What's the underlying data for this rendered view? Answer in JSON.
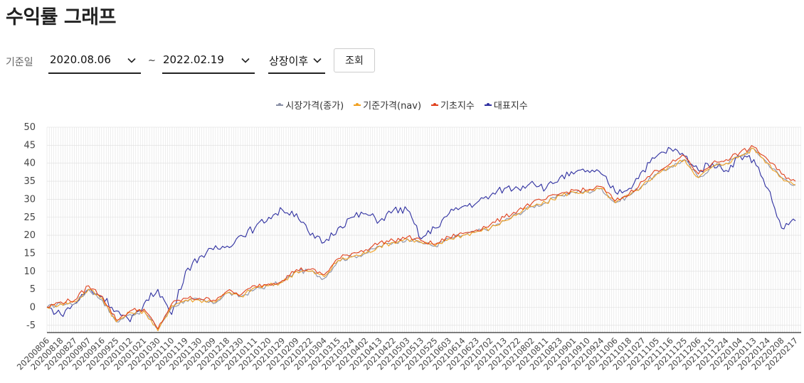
{
  "page": {
    "title": "수익률 그래프"
  },
  "filters": {
    "base_label": "기준일",
    "start_date": "2020.08.06",
    "tilde": "~",
    "end_date": "2022.02.19",
    "period": "상장이후",
    "search_button": "조회"
  },
  "colors": {
    "market_price": "#8a90a6",
    "nav": "#f0a020",
    "base_index": "#e0401c",
    "representative_index": "#2e2fa0",
    "grid": "#dddddd",
    "axis": "#333333"
  },
  "chart_data": {
    "type": "line",
    "title": "",
    "xlabel": "",
    "ylabel": "",
    "ylim": [
      -7,
      50
    ],
    "yticks": [
      -5,
      0,
      5,
      10,
      15,
      20,
      25,
      30,
      35,
      40,
      45,
      50
    ],
    "x_tick_labels": [
      "20200806",
      "20200818",
      "20200827",
      "20200907",
      "20200916",
      "20200925",
      "20201012",
      "20201021",
      "20201030",
      "20201110",
      "20201119",
      "20201130",
      "20201209",
      "20201218",
      "20201230",
      "20210111",
      "20210120",
      "20210129",
      "20210209",
      "20210222",
      "20210304",
      "20210315",
      "20210324",
      "20210402",
      "20210413",
      "20210422",
      "20210503",
      "20210513",
      "20210525",
      "20210603",
      "20210614",
      "20210623",
      "20210702",
      "20210713",
      "20210722",
      "20210802",
      "20210811",
      "20210823",
      "20210901",
      "20210910",
      "20210924",
      "20211006",
      "20211018",
      "20211027",
      "20211105",
      "20211116",
      "20211125",
      "20211206",
      "20211215",
      "20211224",
      "20220104",
      "20220113",
      "20220124",
      "20220208",
      "20220217"
    ],
    "grid": true,
    "legend_position": "top-center",
    "series": [
      {
        "name": "시장가격(종가)",
        "color_key": "market_price",
        "values": [
          0,
          1,
          1,
          5,
          2,
          -4,
          -2,
          -1,
          -6,
          0,
          2,
          2,
          1,
          4,
          3,
          5,
          6,
          7,
          10,
          10,
          8,
          13,
          14,
          15,
          17,
          18,
          19,
          18,
          17,
          19,
          20,
          21,
          22,
          24,
          26,
          28,
          29,
          31,
          32,
          32,
          33,
          29,
          31,
          34,
          37,
          39,
          41,
          36,
          39,
          40,
          42,
          44,
          40,
          36,
          34
        ]
      },
      {
        "name": "기준가격(nav)",
        "color_key": "nav",
        "values": [
          0,
          1,
          1.5,
          5,
          2.5,
          -4,
          -1.5,
          -1,
          -6.5,
          0.5,
          2,
          2,
          1.5,
          4,
          3,
          5.5,
          6,
          7,
          10,
          10,
          8.5,
          13,
          14,
          15,
          17,
          18,
          19,
          18,
          17,
          19,
          20,
          21,
          22,
          24,
          26,
          28,
          29,
          31,
          32,
          32,
          33,
          29,
          31,
          34,
          37,
          39,
          41,
          36,
          39,
          40,
          42,
          44,
          40,
          36,
          34
        ]
      },
      {
        "name": "기초지수",
        "color_key": "base_index",
        "values": [
          0,
          1.5,
          2,
          6,
          3,
          -3.5,
          -1,
          -0.5,
          -6,
          1,
          2.5,
          2.5,
          2,
          4.5,
          3.5,
          6,
          6.5,
          7.5,
          10.5,
          10.5,
          9,
          13.5,
          15,
          16,
          18,
          18.5,
          19.5,
          18.5,
          17.5,
          19.5,
          20.5,
          21.5,
          23,
          25,
          27,
          29,
          30,
          31.5,
          32.5,
          32.5,
          33.5,
          29.5,
          31.5,
          35,
          38,
          40,
          42,
          37,
          40,
          41,
          43,
          44.5,
          41,
          37,
          35
        ]
      },
      {
        "name": "대표지수",
        "color_key": "representative_index",
        "values": [
          0,
          -2,
          1,
          5,
          3,
          -1,
          -4,
          1,
          5,
          -2,
          10,
          14,
          16,
          17,
          20,
          22,
          25,
          27,
          26,
          20,
          18,
          22,
          25,
          26,
          24,
          27,
          27,
          19,
          22,
          26,
          28,
          29,
          31,
          33,
          33,
          35,
          33,
          36,
          37,
          38,
          37,
          32,
          33,
          38,
          42,
          44,
          42,
          38,
          40,
          38,
          42,
          41,
          33,
          22,
          24
        ]
      }
    ]
  }
}
